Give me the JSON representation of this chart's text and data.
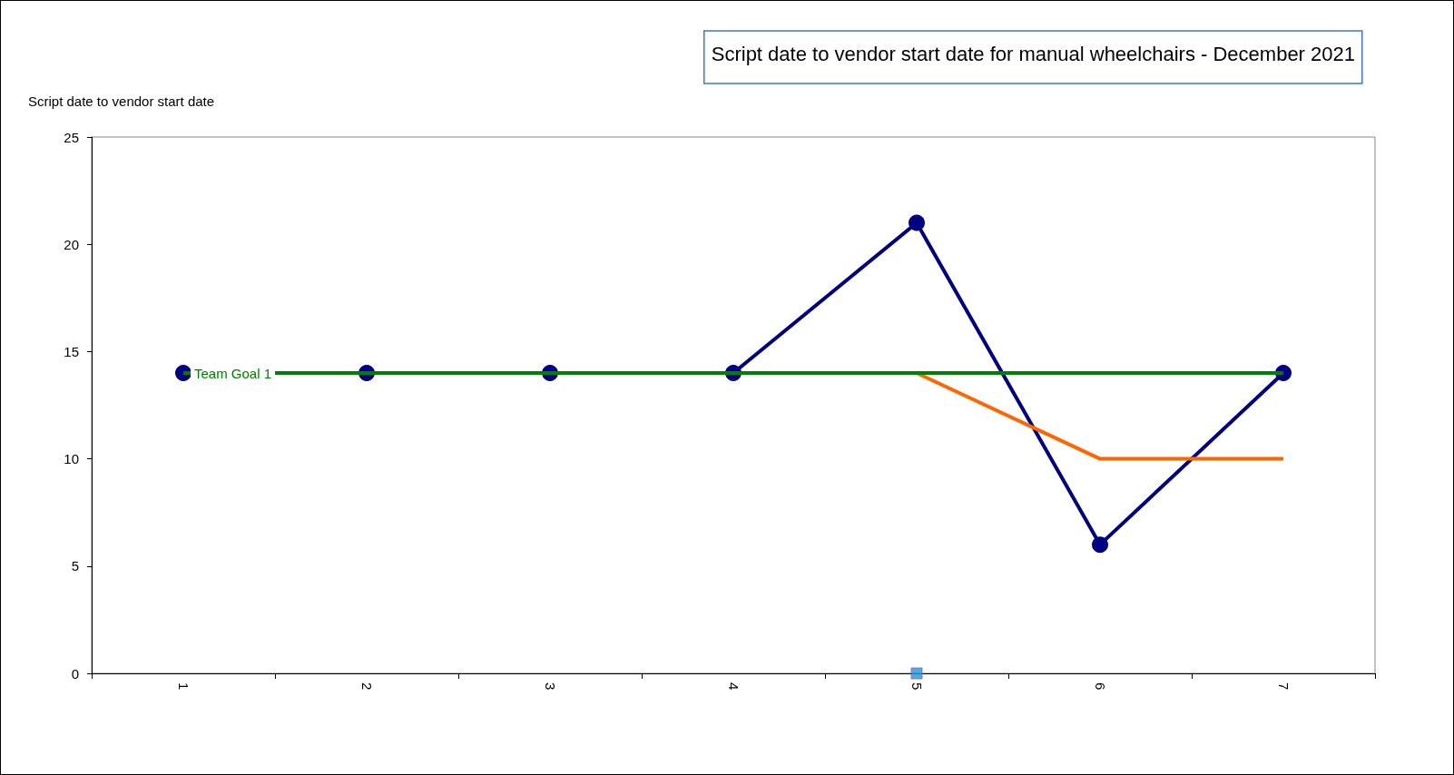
{
  "chart_data": {
    "type": "line",
    "title": "Script date to vendor start date for manual wheelchairs - December 2021",
    "ylabel": "Script date to vendor start date",
    "categories": [
      "1",
      "2",
      "3",
      "4",
      "5",
      "6",
      "7"
    ],
    "series": [
      {
        "color": "#000080",
        "values": [
          14,
          14,
          14,
          14,
          21,
          6,
          14
        ],
        "marker": "circle"
      },
      {
        "name": "Team Goal 1",
        "color": "#008000",
        "values": [
          14,
          14,
          14,
          14,
          14,
          14,
          14
        ],
        "marker": "none"
      },
      {
        "color": "#ff6600",
        "values": [
          null,
          null,
          null,
          null,
          14,
          10,
          10
        ],
        "marker": "none"
      },
      {
        "type": "scatter",
        "color": "#1e9ad6",
        "values": [
          null,
          null,
          null,
          null,
          0,
          null,
          null
        ],
        "marker": "square"
      }
    ],
    "ylim": [
      0,
      25
    ],
    "yticks": [
      0,
      5,
      10,
      15,
      20,
      25
    ],
    "grid": false,
    "legend": false
  }
}
